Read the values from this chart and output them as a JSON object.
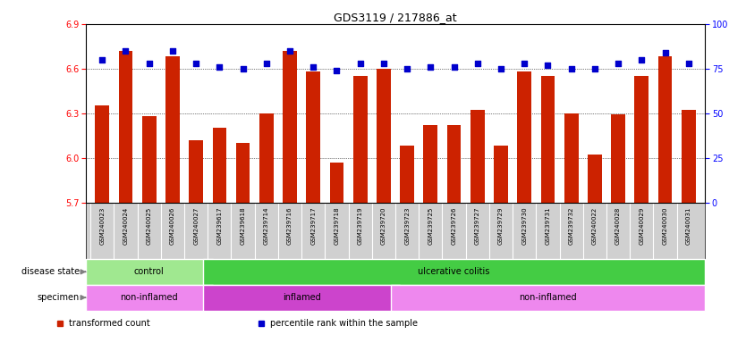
{
  "title": "GDS3119 / 217886_at",
  "samples": [
    "GSM240023",
    "GSM240024",
    "GSM240025",
    "GSM240026",
    "GSM240027",
    "GSM239617",
    "GSM239618",
    "GSM239714",
    "GSM239716",
    "GSM239717",
    "GSM239718",
    "GSM239719",
    "GSM239720",
    "GSM239723",
    "GSM239725",
    "GSM239726",
    "GSM239727",
    "GSM239729",
    "GSM239730",
    "GSM239731",
    "GSM239732",
    "GSM240022",
    "GSM240028",
    "GSM240029",
    "GSM240030",
    "GSM240031"
  ],
  "transformed_count": [
    6.35,
    6.72,
    6.28,
    6.68,
    6.12,
    6.2,
    6.1,
    6.3,
    6.72,
    6.58,
    5.97,
    6.55,
    6.6,
    6.08,
    6.22,
    6.22,
    6.32,
    6.08,
    6.58,
    6.55,
    6.3,
    6.02,
    6.29,
    6.55,
    6.68,
    6.32
  ],
  "percentile_rank": [
    80,
    85,
    78,
    85,
    78,
    76,
    75,
    78,
    85,
    76,
    74,
    78,
    78,
    75,
    76,
    76,
    78,
    75,
    78,
    77,
    75,
    75,
    78,
    80,
    84,
    78
  ],
  "ylim_left": [
    5.7,
    6.9
  ],
  "ylim_right": [
    0,
    100
  ],
  "yticks_left": [
    5.7,
    6.0,
    6.3,
    6.6,
    6.9
  ],
  "yticks_right": [
    0,
    25,
    50,
    75,
    100
  ],
  "bar_color": "#cc2200",
  "dot_color": "#0000cc",
  "xticklabel_bg": "#d0d0d0",
  "plot_bg_color": "#ffffff",
  "disease_state_groups": [
    {
      "label": "control",
      "start": 0,
      "end": 5,
      "color": "#a0e890"
    },
    {
      "label": "ulcerative colitis",
      "start": 5,
      "end": 26,
      "color": "#44cc44"
    }
  ],
  "specimen_groups": [
    {
      "label": "non-inflamed",
      "start": 0,
      "end": 5,
      "color": "#ee88ee"
    },
    {
      "label": "inflamed",
      "start": 5,
      "end": 13,
      "color": "#cc44cc"
    },
    {
      "label": "non-inflamed",
      "start": 13,
      "end": 26,
      "color": "#ee88ee"
    }
  ],
  "legend_items": [
    {
      "label": "transformed count",
      "color": "#cc2200",
      "marker": "s"
    },
    {
      "label": "percentile rank within the sample",
      "color": "#0000cc",
      "marker": "s"
    }
  ]
}
